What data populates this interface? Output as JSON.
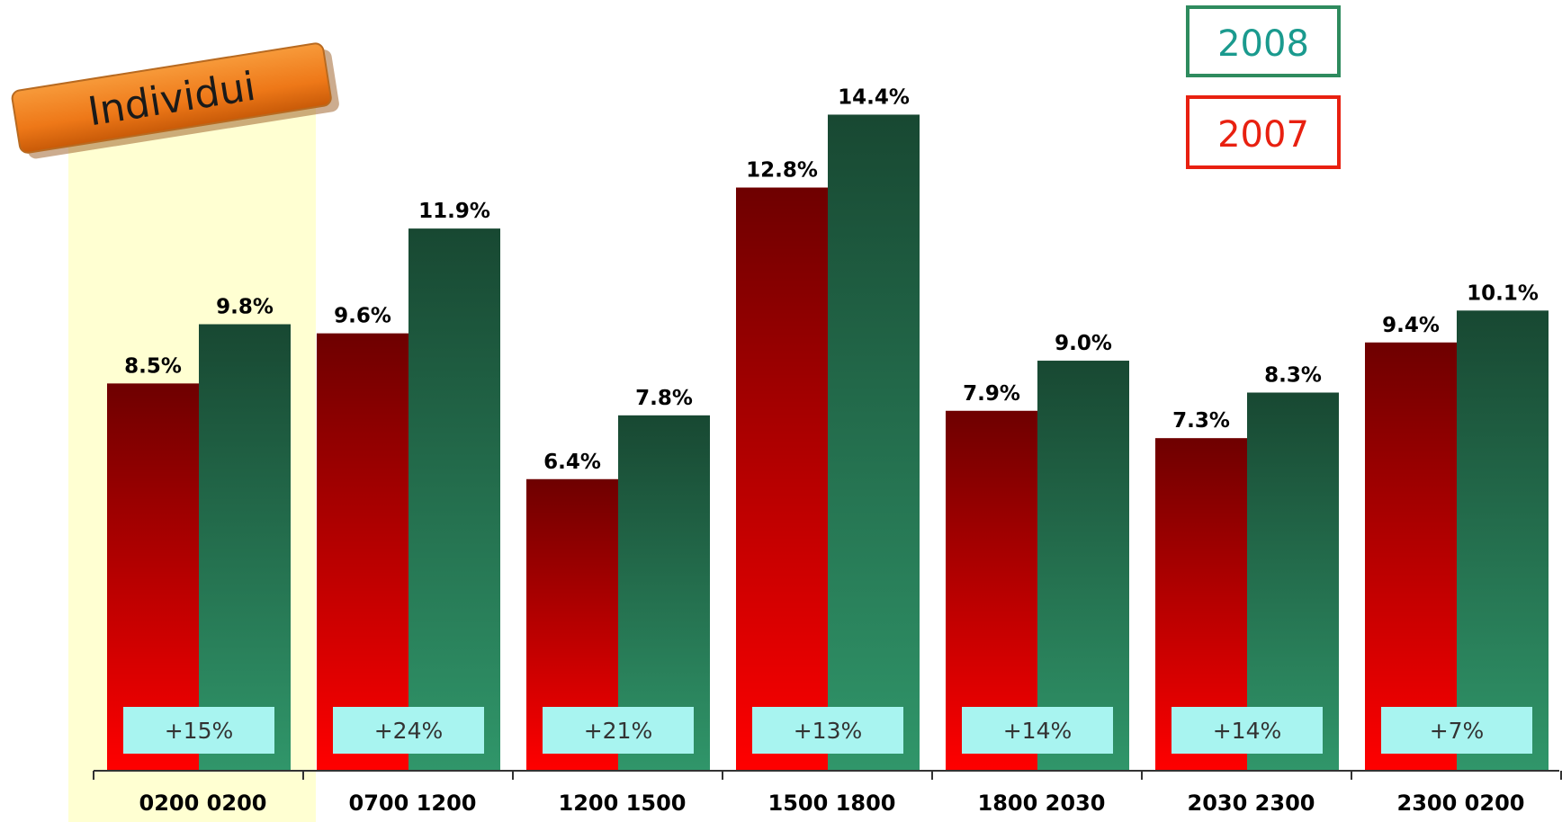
{
  "chart_data": {
    "type": "bar",
    "tag_label": "Individui",
    "highlight_category": "0200 0200",
    "categories": [
      "0200 0200",
      "0700 1200",
      "1200 1500",
      "1500 1800",
      "1800 2030",
      "2030 2300",
      "2300 0200"
    ],
    "series": [
      {
        "name": "2007",
        "color": "#e00000",
        "values": [
          8.5,
          9.6,
          6.4,
          12.8,
          7.9,
          7.3,
          9.4
        ],
        "labels": [
          "8.5%",
          "9.6%",
          "6.4%",
          "12.8%",
          "7.9%",
          "7.3%",
          "9.4%"
        ]
      },
      {
        "name": "2008",
        "color": "#2e8b5e",
        "values": [
          9.8,
          11.9,
          7.8,
          14.4,
          9.0,
          8.3,
          10.1
        ],
        "labels": [
          "9.8%",
          "11.9%",
          "7.8%",
          "14.4%",
          "9.0%",
          "8.3%",
          "10.1%"
        ]
      }
    ],
    "growth_labels": [
      "+15%",
      "+24%",
      "+21%",
      "+13%",
      "+14%",
      "+14%",
      "+7%"
    ],
    "ylim": [
      0,
      15.1
    ],
    "legend": {
      "placement": "top-right",
      "items": [
        {
          "label": "2008",
          "text_color": "#1a9a8e",
          "border_color": "#2e8b5e"
        },
        {
          "label": "2007",
          "text_color": "#e82010",
          "border_color": "#e82010"
        }
      ]
    },
    "colors": {
      "bar_2007_top": "#6e0000",
      "bar_2007_bottom": "#ff0000",
      "bar_2008_top": "#184832",
      "bar_2008_bottom": "#30966a",
      "growth_box": "#a8f4f0",
      "highlight": "#ffffd2",
      "tag_fill": "#ee7018"
    }
  }
}
